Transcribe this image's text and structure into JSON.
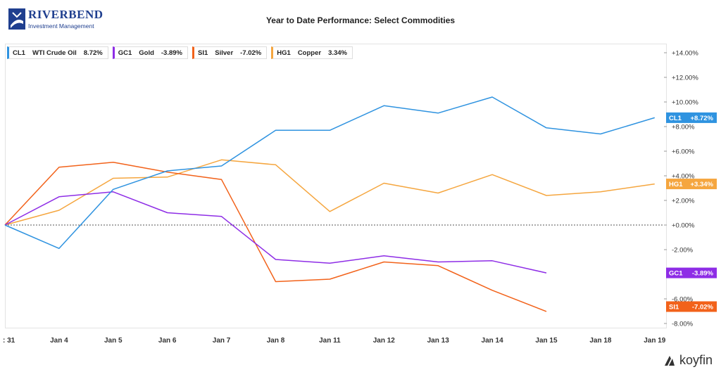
{
  "logo": {
    "brand": "RIVERBEND",
    "sub": "Investment Management"
  },
  "footer": {
    "brand": "koyfin"
  },
  "chart_data": {
    "type": "line",
    "title": "Year to Date Performance: Select Commodities",
    "categories": [
      ": 31",
      "Jan 4",
      "Jan 5",
      "Jan 6",
      "Jan 7",
      "Jan 8",
      "Jan 11",
      "Jan 12",
      "Jan 13",
      "Jan 14",
      "Jan 15",
      "Jan 18",
      "Jan 19"
    ],
    "ylim": [
      -8.5,
      14.5
    ],
    "yticks": [
      {
        "v": 14,
        "label": "+14.00%"
      },
      {
        "v": 12,
        "label": "+12.00%"
      },
      {
        "v": 10,
        "label": "+10.00%"
      },
      {
        "v": 8,
        "label": "+8.00%"
      },
      {
        "v": 6,
        "label": "+6.00%"
      },
      {
        "v": 4,
        "label": "+4.00%"
      },
      {
        "v": 2,
        "label": "+2.00%"
      },
      {
        "v": 0,
        "label": "+0.00%"
      },
      {
        "v": -2,
        "label": "-2.00%"
      },
      {
        "v": -6,
        "label": "-6.00%"
      },
      {
        "v": -8,
        "label": "-8.00%"
      }
    ],
    "grid": false,
    "legend_position": "top-left",
    "series": [
      {
        "ticker": "CL1",
        "name": "WTI Crude Oil",
        "last": "8.72%",
        "tag": "+8.72%",
        "color": "#2f93e0",
        "values": [
          0,
          -1.9,
          2.9,
          4.4,
          4.8,
          7.7,
          7.7,
          9.7,
          9.1,
          10.4,
          7.9,
          7.4,
          8.72
        ]
      },
      {
        "ticker": "GC1",
        "name": "Gold",
        "last": "-3.89%",
        "tag": "-3.89%",
        "color": "#8e2de6",
        "values": [
          0,
          2.3,
          2.7,
          1.0,
          0.7,
          -2.8,
          -3.1,
          -2.5,
          -3.0,
          -2.9,
          -3.89,
          null,
          null
        ]
      },
      {
        "ticker": "SI1",
        "name": "Silver",
        "last": "-7.02%",
        "tag": "-7.02%",
        "color": "#f2621a",
        "values": [
          0,
          4.7,
          5.1,
          4.3,
          3.7,
          -4.6,
          -4.4,
          -3.0,
          -3.3,
          -5.3,
          -7.02,
          null,
          null
        ]
      },
      {
        "ticker": "HG1",
        "name": "Copper",
        "last": "3.34%",
        "tag": "+3.34%",
        "color": "#f5a63f",
        "values": [
          0,
          1.2,
          3.8,
          3.9,
          5.3,
          4.9,
          1.1,
          3.4,
          2.6,
          4.1,
          2.4,
          2.7,
          3.34
        ]
      }
    ]
  }
}
